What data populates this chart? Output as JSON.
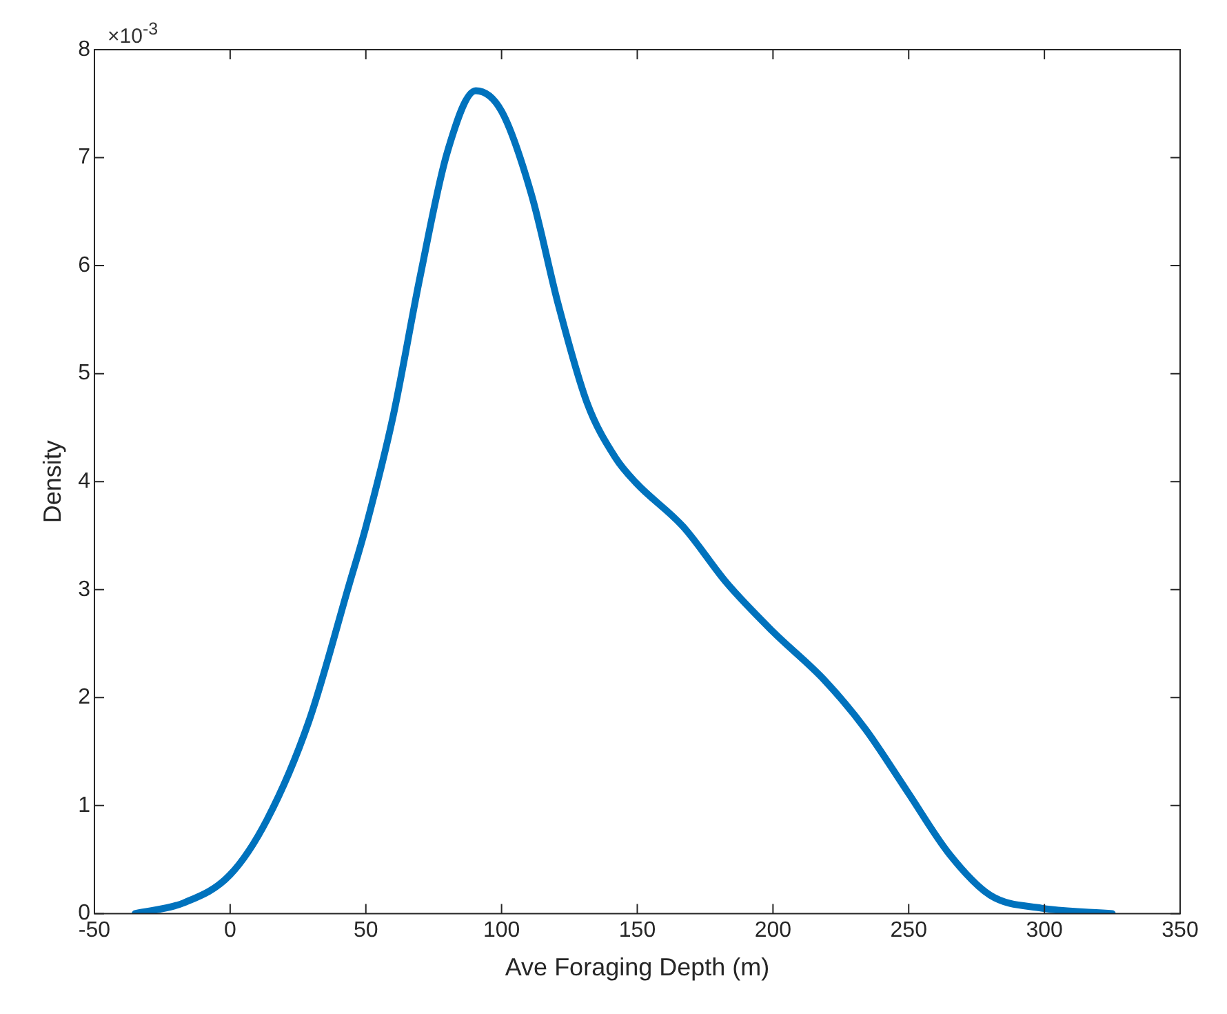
{
  "chart_data": {
    "type": "line",
    "xlabel": "Ave Foraging Depth (m)",
    "ylabel": "Density",
    "annotations": [
      "×10$^{-3}$"
    ],
    "x": [
      -35,
      -17,
      0,
      13.6,
      29,
      44,
      50,
      60,
      70,
      80,
      90.5,
      100,
      111,
      121,
      131.5,
      142,
      149.5,
      167,
      183,
      200,
      219,
      234,
      249.5,
      265,
      280,
      299,
      325
    ],
    "series": [
      {
        "color": "#0072bd",
        "values": [
          0,
          0.1,
          0.36,
          0.87,
          1.78,
          3.06,
          3.58,
          4.6,
          5.9,
          7.05,
          7.62,
          7.43,
          6.66,
          5.63,
          4.73,
          4.22,
          3.99,
          3.58,
          3.06,
          2.61,
          2.16,
          1.71,
          1.13,
          0.55,
          0.17,
          0.05,
          0
        ]
      }
    ],
    "xlim": [
      -50,
      350
    ],
    "xticks": [
      -50,
      0,
      50,
      100,
      150,
      200,
      250,
      300,
      350
    ],
    "ylim": [
      0,
      8
    ],
    "yticks": [
      0,
      1,
      2,
      3,
      4,
      5,
      6,
      7,
      8
    ],
    "grid": false,
    "legend": false,
    "marker": "none",
    "line_style": "solid"
  }
}
